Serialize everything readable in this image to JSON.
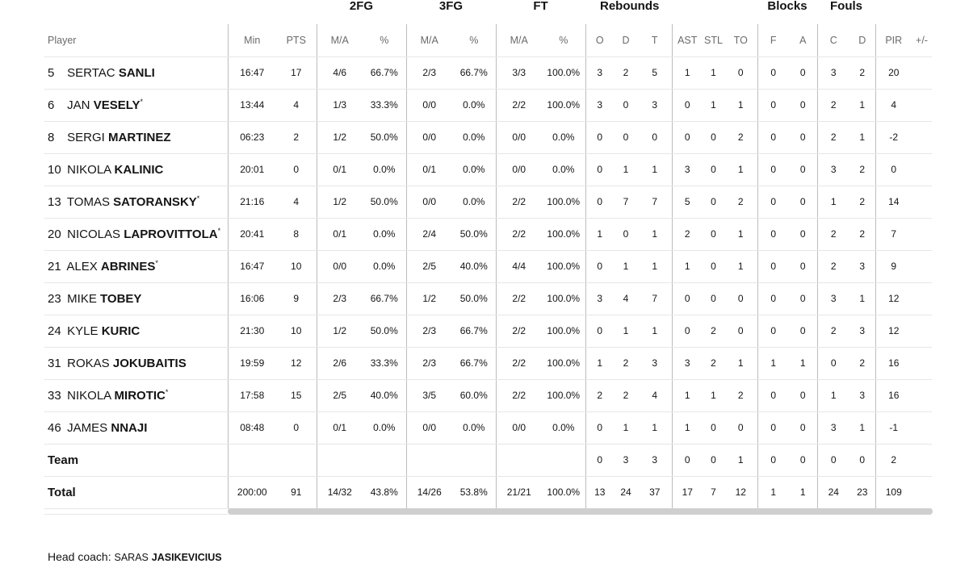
{
  "groups": {
    "fg2": "2FG",
    "fg3": "3FG",
    "ft": "FT",
    "rebounds": "Rebounds",
    "blocks": "Blocks",
    "fouls": "Fouls"
  },
  "columns": [
    "Player",
    "Min",
    "PTS",
    "M/A",
    "%",
    "M/A",
    "%",
    "M/A",
    "%",
    "O",
    "D",
    "T",
    "AST",
    "STL",
    "TO",
    "F",
    "A",
    "C",
    "D",
    "PIR",
    "+/-"
  ],
  "players": [
    {
      "num": "5",
      "first": "SERTAC",
      "last": "SANLI",
      "star": "",
      "min": "16:47",
      "pts": "17",
      "fg2m": "4/6",
      "fg2p": "66.7%",
      "fg3m": "2/3",
      "fg3p": "66.7%",
      "ftm": "3/3",
      "ftp": "100.0%",
      "o": "3",
      "d": "2",
      "t": "5",
      "ast": "1",
      "stl": "1",
      "to": "0",
      "bf": "0",
      "ba": "0",
      "fc": "3",
      "fd": "2",
      "pir": "20",
      "pm": ""
    },
    {
      "num": "6",
      "first": "JAN",
      "last": "VESELY",
      "star": "*",
      "min": "13:44",
      "pts": "4",
      "fg2m": "1/3",
      "fg2p": "33.3%",
      "fg3m": "0/0",
      "fg3p": "0.0%",
      "ftm": "2/2",
      "ftp": "100.0%",
      "o": "3",
      "d": "0",
      "t": "3",
      "ast": "0",
      "stl": "1",
      "to": "1",
      "bf": "0",
      "ba": "0",
      "fc": "2",
      "fd": "1",
      "pir": "4",
      "pm": ""
    },
    {
      "num": "8",
      "first": "SERGI",
      "last": "MARTINEZ",
      "star": "",
      "min": "06:23",
      "pts": "2",
      "fg2m": "1/2",
      "fg2p": "50.0%",
      "fg3m": "0/0",
      "fg3p": "0.0%",
      "ftm": "0/0",
      "ftp": "0.0%",
      "o": "0",
      "d": "0",
      "t": "0",
      "ast": "0",
      "stl": "0",
      "to": "2",
      "bf": "0",
      "ba": "0",
      "fc": "2",
      "fd": "1",
      "pir": "-2",
      "pm": ""
    },
    {
      "num": "10",
      "first": "NIKOLA",
      "last": "KALINIC",
      "star": "",
      "min": "20:01",
      "pts": "0",
      "fg2m": "0/1",
      "fg2p": "0.0%",
      "fg3m": "0/1",
      "fg3p": "0.0%",
      "ftm": "0/0",
      "ftp": "0.0%",
      "o": "0",
      "d": "1",
      "t": "1",
      "ast": "3",
      "stl": "0",
      "to": "1",
      "bf": "0",
      "ba": "0",
      "fc": "3",
      "fd": "2",
      "pir": "0",
      "pm": ""
    },
    {
      "num": "13",
      "first": "TOMAS",
      "last": "SATORANSKY",
      "star": "*",
      "min": "21:16",
      "pts": "4",
      "fg2m": "1/2",
      "fg2p": "50.0%",
      "fg3m": "0/0",
      "fg3p": "0.0%",
      "ftm": "2/2",
      "ftp": "100.0%",
      "o": "0",
      "d": "7",
      "t": "7",
      "ast": "5",
      "stl": "0",
      "to": "2",
      "bf": "0",
      "ba": "0",
      "fc": "1",
      "fd": "2",
      "pir": "14",
      "pm": ""
    },
    {
      "num": "20",
      "first": "NICOLAS",
      "last": "LAPROVITTOLA",
      "star": "*",
      "min": "20:41",
      "pts": "8",
      "fg2m": "0/1",
      "fg2p": "0.0%",
      "fg3m": "2/4",
      "fg3p": "50.0%",
      "ftm": "2/2",
      "ftp": "100.0%",
      "o": "1",
      "d": "0",
      "t": "1",
      "ast": "2",
      "stl": "0",
      "to": "1",
      "bf": "0",
      "ba": "0",
      "fc": "2",
      "fd": "2",
      "pir": "7",
      "pm": ""
    },
    {
      "num": "21",
      "first": "ALEX",
      "last": "ABRINES",
      "star": "*",
      "min": "16:47",
      "pts": "10",
      "fg2m": "0/0",
      "fg2p": "0.0%",
      "fg3m": "2/5",
      "fg3p": "40.0%",
      "ftm": "4/4",
      "ftp": "100.0%",
      "o": "0",
      "d": "1",
      "t": "1",
      "ast": "1",
      "stl": "0",
      "to": "1",
      "bf": "0",
      "ba": "0",
      "fc": "2",
      "fd": "3",
      "pir": "9",
      "pm": ""
    },
    {
      "num": "23",
      "first": "MIKE",
      "last": "TOBEY",
      "star": "",
      "min": "16:06",
      "pts": "9",
      "fg2m": "2/3",
      "fg2p": "66.7%",
      "fg3m": "1/2",
      "fg3p": "50.0%",
      "ftm": "2/2",
      "ftp": "100.0%",
      "o": "3",
      "d": "4",
      "t": "7",
      "ast": "0",
      "stl": "0",
      "to": "0",
      "bf": "0",
      "ba": "0",
      "fc": "3",
      "fd": "1",
      "pir": "12",
      "pm": ""
    },
    {
      "num": "24",
      "first": "KYLE",
      "last": "KURIC",
      "star": "",
      "min": "21:30",
      "pts": "10",
      "fg2m": "1/2",
      "fg2p": "50.0%",
      "fg3m": "2/3",
      "fg3p": "66.7%",
      "ftm": "2/2",
      "ftp": "100.0%",
      "o": "0",
      "d": "1",
      "t": "1",
      "ast": "0",
      "stl": "2",
      "to": "0",
      "bf": "0",
      "ba": "0",
      "fc": "2",
      "fd": "3",
      "pir": "12",
      "pm": ""
    },
    {
      "num": "31",
      "first": "ROKAS",
      "last": "JOKUBAITIS",
      "star": "",
      "min": "19:59",
      "pts": "12",
      "fg2m": "2/6",
      "fg2p": "33.3%",
      "fg3m": "2/3",
      "fg3p": "66.7%",
      "ftm": "2/2",
      "ftp": "100.0%",
      "o": "1",
      "d": "2",
      "t": "3",
      "ast": "3",
      "stl": "2",
      "to": "1",
      "bf": "1",
      "ba": "1",
      "fc": "0",
      "fd": "2",
      "pir": "16",
      "pm": ""
    },
    {
      "num": "33",
      "first": "NIKOLA",
      "last": "MIROTIC",
      "star": "*",
      "min": "17:58",
      "pts": "15",
      "fg2m": "2/5",
      "fg2p": "40.0%",
      "fg3m": "3/5",
      "fg3p": "60.0%",
      "ftm": "2/2",
      "ftp": "100.0%",
      "o": "2",
      "d": "2",
      "t": "4",
      "ast": "1",
      "stl": "1",
      "to": "2",
      "bf": "0",
      "ba": "0",
      "fc": "1",
      "fd": "3",
      "pir": "16",
      "pm": ""
    },
    {
      "num": "46",
      "first": "JAMES",
      "last": "NNAJI",
      "star": "",
      "min": "08:48",
      "pts": "0",
      "fg2m": "0/1",
      "fg2p": "0.0%",
      "fg3m": "0/0",
      "fg3p": "0.0%",
      "ftm": "0/0",
      "ftp": "0.0%",
      "o": "0",
      "d": "1",
      "t": "1",
      "ast": "1",
      "stl": "0",
      "to": "0",
      "bf": "0",
      "ba": "0",
      "fc": "3",
      "fd": "1",
      "pir": "-1",
      "pm": ""
    }
  ],
  "team": {
    "label": "Team",
    "o": "0",
    "d": "3",
    "t": "3",
    "ast": "0",
    "stl": "0",
    "to": "1",
    "bf": "0",
    "ba": "0",
    "fc": "0",
    "fd": "0",
    "pir": "2"
  },
  "total": {
    "label": "Total",
    "min": "200:00",
    "pts": "91",
    "fg2m": "14/32",
    "fg2p": "43.8%",
    "fg3m": "14/26",
    "fg3p": "53.8%",
    "ftm": "21/21",
    "ftp": "100.0%",
    "o": "13",
    "d": "24",
    "t": "37",
    "ast": "17",
    "stl": "7",
    "to": "12",
    "bf": "1",
    "ba": "1",
    "fc": "24",
    "fd": "23",
    "pir": "109",
    "pm": ""
  },
  "coach": {
    "label": "Head coach:",
    "first": "SARAS",
    "last": "JASIKEVICIUS"
  }
}
